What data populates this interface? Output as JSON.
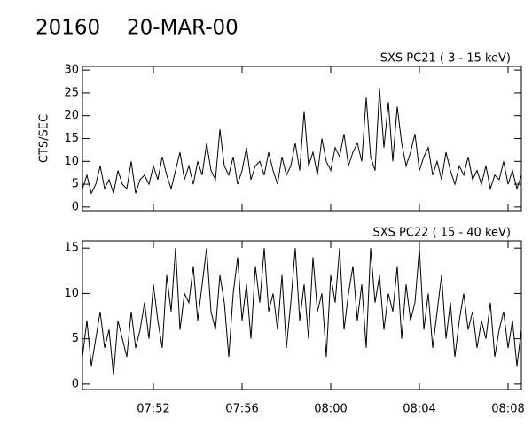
{
  "header": {
    "id": "20160",
    "date": "20-MAR-00"
  },
  "chart_data": [
    {
      "type": "line",
      "title": "SXS PC21  (  3 - 15 keV)",
      "ylabel": "CTS/SEC",
      "color": "#000000",
      "x": [
        468.8,
        469.0,
        469.2,
        469.4,
        469.6,
        469.8,
        470.0,
        470.2,
        470.4,
        470.6,
        470.8,
        471.0,
        471.2,
        471.4,
        471.6,
        471.8,
        472.0,
        472.2,
        472.4,
        472.6,
        472.8,
        473.0,
        473.2,
        473.4,
        473.6,
        473.8,
        474.0,
        474.2,
        474.4,
        474.6,
        474.8,
        475.0,
        475.2,
        475.4,
        475.6,
        475.8,
        476.0,
        476.2,
        476.4,
        476.6,
        476.8,
        477.0,
        477.2,
        477.4,
        477.6,
        477.8,
        478.0,
        478.2,
        478.4,
        478.6,
        478.8,
        479.0,
        479.2,
        479.4,
        479.6,
        479.8,
        480.0,
        480.2,
        480.4,
        480.6,
        480.8,
        481.0,
        481.2,
        481.4,
        481.6,
        481.8,
        482.0,
        482.2,
        482.4,
        482.6,
        482.8,
        483.0,
        483.2,
        483.4,
        483.6,
        483.8,
        484.0,
        484.2,
        484.4,
        484.6,
        484.8,
        485.0,
        485.2,
        485.4,
        485.6,
        485.8,
        486.0,
        486.2,
        486.4,
        486.6,
        486.8,
        487.0,
        487.2,
        487.4,
        487.6,
        487.8,
        488.0,
        488.2,
        488.4,
        488.6
      ],
      "values": [
        4,
        7,
        3,
        5,
        9,
        4,
        6,
        3,
        8,
        5,
        4,
        10,
        3,
        6,
        7,
        5,
        9,
        6,
        11,
        7,
        4,
        8,
        12,
        6,
        9,
        5,
        10,
        7,
        14,
        8,
        6,
        17,
        9,
        7,
        11,
        5,
        8,
        13,
        6,
        9,
        10,
        7,
        12,
        8,
        5,
        11,
        7,
        9,
        14,
        8,
        21,
        9,
        12,
        7,
        15,
        10,
        8,
        13,
        11,
        16,
        9,
        12,
        14,
        10,
        24,
        11,
        8,
        26,
        13,
        23,
        10,
        22,
        14,
        9,
        12,
        16,
        8,
        11,
        13,
        7,
        10,
        6,
        12,
        8,
        5,
        9,
        7,
        11,
        6,
        8,
        5,
        9,
        4,
        7,
        6,
        10,
        5,
        8,
        4,
        7
      ],
      "xlim": [
        468.8,
        488.6
      ],
      "ylim": [
        -0.8,
        30.8
      ],
      "yticks": [
        0,
        5,
        10,
        15,
        20,
        25,
        30
      ]
    },
    {
      "type": "line",
      "title": "SXS PC22  ( 15 - 40 keV)",
      "color": "#000000",
      "x": [
        468.8,
        469.0,
        469.2,
        469.4,
        469.6,
        469.8,
        470.0,
        470.2,
        470.4,
        470.6,
        470.8,
        471.0,
        471.2,
        471.4,
        471.6,
        471.8,
        472.0,
        472.2,
        472.4,
        472.6,
        472.8,
        473.0,
        473.2,
        473.4,
        473.6,
        473.8,
        474.0,
        474.2,
        474.4,
        474.6,
        474.8,
        475.0,
        475.2,
        475.4,
        475.6,
        475.8,
        476.0,
        476.2,
        476.4,
        476.6,
        476.8,
        477.0,
        477.2,
        477.4,
        477.6,
        477.8,
        478.0,
        478.2,
        478.4,
        478.6,
        478.8,
        479.0,
        479.2,
        479.4,
        479.6,
        479.8,
        480.0,
        480.2,
        480.4,
        480.6,
        480.8,
        481.0,
        481.2,
        481.4,
        481.6,
        481.8,
        482.0,
        482.2,
        482.4,
        482.6,
        482.8,
        483.0,
        483.2,
        483.4,
        483.6,
        483.8,
        484.0,
        484.2,
        484.4,
        484.6,
        484.8,
        485.0,
        485.2,
        485.4,
        485.6,
        485.8,
        486.0,
        486.2,
        486.4,
        486.6,
        486.8,
        487.0,
        487.2,
        487.4,
        487.6,
        487.8,
        488.0,
        488.2,
        488.4,
        488.6
      ],
      "values": [
        3,
        7,
        2,
        5,
        8,
        4,
        6,
        1,
        7,
        5,
        3,
        8,
        4,
        6,
        9,
        5,
        11,
        7,
        4,
        12,
        8,
        15,
        6,
        10,
        9,
        13,
        7,
        11,
        15,
        8,
        6,
        12,
        9,
        3,
        10,
        14,
        7,
        11,
        5,
        13,
        9,
        15,
        8,
        10,
        6,
        12,
        4,
        9,
        15,
        7,
        11,
        5,
        14,
        8,
        10,
        3,
        12,
        9,
        15,
        6,
        10,
        13,
        7,
        11,
        4,
        15,
        9,
        12,
        6,
        10,
        8,
        13,
        5,
        11,
        7,
        9,
        15,
        6,
        10,
        4,
        8,
        12,
        5,
        9,
        3,
        7,
        10,
        6,
        8,
        4,
        7,
        5,
        9,
        3,
        6,
        8,
        4,
        7,
        2,
        6
      ],
      "xlim": [
        468.8,
        488.6
      ],
      "ylim": [
        -0.6,
        15.8
      ],
      "yticks": [
        0,
        5,
        10,
        15
      ],
      "xticks": [
        {
          "value": 472,
          "label": "07:52"
        },
        {
          "value": 476,
          "label": "07:56"
        },
        {
          "value": 480,
          "label": "08:00"
        },
        {
          "value": 484,
          "label": "08:04"
        },
        {
          "value": 488,
          "label": "08:08"
        }
      ]
    }
  ]
}
